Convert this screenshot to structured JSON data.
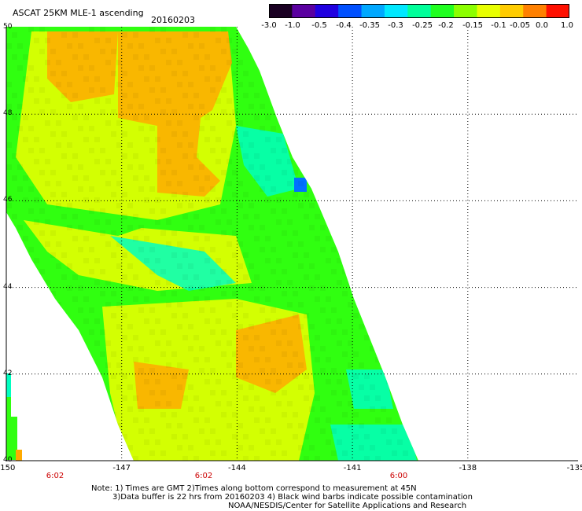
{
  "header": {
    "title": "ASCAT 25KM MLE-1 ascending",
    "date": "20160203"
  },
  "colorbar": {
    "labels": [
      "-3.0",
      "-1.0",
      "-0.5",
      "-0.4",
      "-0.35",
      "-0.3",
      "-0.25",
      "-0.2",
      "-0.15",
      "-0.1",
      "-0.05",
      "0.0",
      "1.0"
    ],
    "colors": [
      "#1a0022",
      "#5a00a0",
      "#2000e0",
      "#0050ff",
      "#00a8ff",
      "#00e8ff",
      "#00ff9a",
      "#20ff20",
      "#8cff00",
      "#e8ff00",
      "#ffcc00",
      "#ff8000",
      "#ff1000"
    ]
  },
  "map": {
    "lat_labels": [
      "50",
      "48",
      "46",
      "44",
      "42",
      "40"
    ],
    "lon_labels": [
      "-150",
      "-147",
      "-144",
      "-141",
      "-138",
      "-135"
    ],
    "time_labels": [
      "6:02",
      "6:02",
      "6:00"
    ],
    "swath_colors": {
      "orange": "#ffaa00",
      "yellow": "#f0ff00",
      "green": "#30ff10",
      "cyan": "#00ffc0",
      "blue": "#0070ff"
    }
  },
  "footer": {
    "note_line1": "Note: 1) Times are GMT 2)Times along bottom correspond to measurement at 45N",
    "note_line2": "3)Data buffer is 22 hrs from 20160203 4) Black wind barbs indicate possible contamination",
    "credit": "NOAA/NESDIS/Center for Satellite Applications and Research"
  }
}
